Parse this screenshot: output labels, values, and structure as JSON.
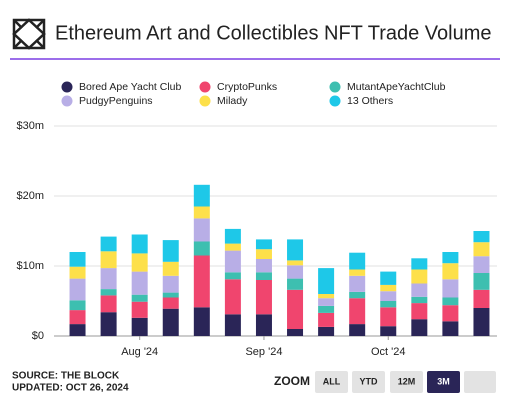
{
  "header": {
    "title": "Ethereum Art and Collectibles NFT Trade Volume"
  },
  "chart_data": {
    "type": "stacked-bar",
    "categories": [
      null,
      null,
      "Aug '24",
      null,
      null,
      null,
      "Sep '24",
      null,
      null,
      null,
      "Oct '24",
      null,
      null,
      null
    ],
    "series": [
      {
        "name": "Bored Ape Yacht Club",
        "color": "#2a2557",
        "values": [
          1.7,
          3.4,
          2.6,
          3.9,
          4.1,
          3.1,
          3.1,
          1.0,
          1.3,
          1.7,
          1.4,
          2.4,
          2.1,
          4.0
        ]
      },
      {
        "name": "CryptoPunks",
        "color": "#f0456e",
        "values": [
          2.0,
          2.4,
          2.3,
          1.6,
          7.4,
          5.0,
          4.9,
          5.6,
          2.0,
          3.7,
          2.7,
          2.3,
          2.3,
          2.6
        ]
      },
      {
        "name": "MutantApeYachtClub",
        "color": "#3dbfb0",
        "values": [
          1.4,
          0.9,
          1.0,
          0.7,
          2.0,
          1.0,
          1.1,
          1.6,
          1.0,
          0.9,
          0.9,
          0.9,
          1.1,
          2.4
        ]
      },
      {
        "name": "PudgyPenguins",
        "color": "#b8aee6",
        "values": [
          3.1,
          3.0,
          3.3,
          2.4,
          3.3,
          3.1,
          1.9,
          1.9,
          1.1,
          2.3,
          1.4,
          1.9,
          2.6,
          2.4
        ]
      },
      {
        "name": "Milady",
        "color": "#fde04a",
        "values": [
          1.7,
          2.4,
          2.6,
          2.0,
          1.7,
          1.0,
          1.4,
          0.7,
          0.6,
          0.9,
          0.9,
          2.0,
          2.3,
          2.0
        ]
      },
      {
        "name": "13 Others",
        "color": "#1ec8e8",
        "values": [
          2.1,
          2.1,
          2.7,
          3.1,
          3.1,
          2.1,
          1.4,
          3.0,
          3.7,
          2.4,
          1.9,
          1.6,
          1.6,
          1.6
        ]
      }
    ],
    "ylim": [
      0,
      30
    ],
    "yticks": [
      {
        "value": 0,
        "label": "$0"
      },
      {
        "value": 10,
        "label": "$10m"
      },
      {
        "value": 20,
        "label": "$20m"
      },
      {
        "value": 30,
        "label": "$30m"
      }
    ],
    "grid": true
  },
  "footer": {
    "source": "SOURCE: THE BLOCK",
    "updated": "UPDATED: OCT 26, 2024"
  },
  "zoom": {
    "label": "ZOOM",
    "buttons": [
      "ALL",
      "YTD",
      "12M",
      "3M"
    ],
    "active": 3
  }
}
